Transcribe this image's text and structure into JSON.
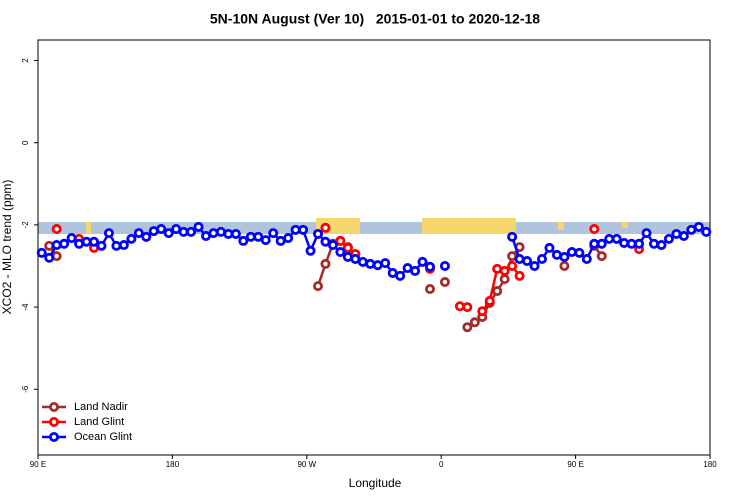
{
  "chart_data": {
    "type": "line",
    "title": "5N-10N August (Ver 10)   2015-01-01 to 2020-12-18",
    "x_label": "Longitude",
    "y_label": "XCO2 - MLO trend (ppm)",
    "xlim": [
      90,
      540
    ],
    "ylim": [
      -7.6,
      2.5
    ],
    "xticks": [
      {
        "value": 90,
        "label": "90 E"
      },
      180,
      {
        "value": 270,
        "label": "90 W"
      },
      {
        "value": 360,
        "label": "0"
      },
      {
        "value": 450,
        "label": "90 E"
      },
      {
        "value": 540,
        "label": "180"
      }
    ],
    "yticks": [
      -6,
      -4,
      -2,
      0,
      2
    ],
    "legend": "bottom-left",
    "x": [
      92.5,
      97.5,
      102.5,
      107.5,
      112.5,
      117.5,
      122.5,
      127.5,
      132.5,
      137.5,
      142.5,
      147.5,
      152.5,
      157.5,
      162.5,
      167.5,
      172.5,
      177.5,
      182.5,
      187.5,
      192.5,
      197.5,
      202.5,
      207.5,
      212.5,
      217.5,
      222.5,
      227.5,
      232.5,
      237.5,
      242.5,
      247.5,
      252.5,
      257.5,
      262.5,
      267.5,
      272.5,
      277.5,
      282.5,
      287.5,
      292.5,
      297.5,
      302.5,
      307.5,
      312.5,
      317.5,
      322.5,
      327.5,
      332.5,
      337.5,
      342.5,
      347.5,
      352.5,
      357.5,
      362.5,
      367.5,
      372.5,
      377.5,
      382.5,
      387.5,
      392.5,
      397.5,
      402.5,
      407.5,
      412.5,
      417.5,
      422.5,
      427.5,
      432.5,
      437.5,
      442.5,
      447.5,
      452.5,
      457.5,
      462.5,
      467.5,
      472.5,
      477.5,
      482.5,
      487.5,
      492.5,
      497.5,
      502.5,
      507.5,
      512.5,
      517.5,
      522.5,
      527.5,
      532.5,
      537.5
    ],
    "series": [
      {
        "name": "Land Nadir",
        "color": "#a52a2a",
        "values": [
          null,
          -2.51,
          -2.76,
          null,
          null,
          null,
          null,
          null,
          null,
          null,
          null,
          null,
          null,
          null,
          null,
          null,
          null,
          null,
          null,
          null,
          null,
          null,
          null,
          null,
          null,
          null,
          null,
          null,
          null,
          null,
          null,
          null,
          null,
          null,
          null,
          null,
          null,
          -3.49,
          -2.95,
          -2.46,
          -2.39,
          -2.54,
          -2.71,
          null,
          null,
          null,
          null,
          null,
          null,
          null,
          null,
          null,
          -3.56,
          null,
          -3.39,
          null,
          null,
          -4.49,
          -4.37,
          -4.24,
          -3.9,
          -3.61,
          -3.32,
          -2.76,
          -2.54,
          null,
          null,
          null,
          null,
          null,
          -3.0,
          null,
          null,
          null,
          -2.51,
          -2.76,
          null,
          null,
          null,
          null,
          null,
          null,
          null,
          null,
          null,
          null,
          null,
          null,
          null,
          null
        ]
      },
      {
        "name": "Land Glint",
        "color": "#ff0000",
        "values": [
          null,
          null,
          -2.1,
          null,
          null,
          -2.34,
          null,
          -2.56,
          null,
          null,
          null,
          null,
          null,
          null,
          null,
          null,
          null,
          null,
          null,
          null,
          null,
          null,
          null,
          null,
          null,
          null,
          null,
          null,
          null,
          null,
          null,
          null,
          null,
          null,
          null,
          null,
          null,
          null,
          -2.07,
          null,
          -2.39,
          -2.56,
          -2.71,
          null,
          null,
          null,
          null,
          null,
          null,
          null,
          null,
          null,
          -3.07,
          null,
          null,
          null,
          -3.98,
          -4.0,
          null,
          -4.1,
          -3.85,
          -3.07,
          -3.12,
          -3.0,
          -3.24,
          null,
          null,
          null,
          null,
          null,
          null,
          null,
          null,
          null,
          -2.1,
          null,
          null,
          null,
          null,
          null,
          -2.59,
          null,
          null,
          null,
          null,
          null,
          null,
          null,
          null,
          null
        ]
      },
      {
        "name": "Ocean Glint",
        "color": "#0000ff",
        "values": [
          -2.68,
          -2.8,
          -2.49,
          -2.46,
          -2.32,
          -2.46,
          -2.41,
          -2.41,
          -2.51,
          -2.2,
          -2.51,
          -2.49,
          -2.34,
          -2.2,
          -2.29,
          -2.15,
          -2.1,
          -2.2,
          -2.1,
          -2.17,
          -2.17,
          -2.05,
          -2.27,
          -2.2,
          -2.17,
          -2.22,
          -2.22,
          -2.39,
          -2.29,
          -2.29,
          -2.37,
          -2.2,
          -2.39,
          -2.32,
          -2.12,
          -2.12,
          -2.63,
          -2.22,
          -2.41,
          -2.49,
          -2.66,
          -2.78,
          -2.83,
          -2.9,
          -2.95,
          -2.98,
          -2.93,
          -3.17,
          -3.24,
          -3.05,
          -3.12,
          -2.9,
          -3.02,
          null,
          -3.0,
          null,
          null,
          null,
          null,
          null,
          null,
          null,
          null,
          -2.29,
          -2.83,
          -2.88,
          -3.0,
          -2.83,
          -2.56,
          -2.73,
          -2.78,
          -2.66,
          -2.68,
          -2.83,
          -2.46,
          -2.46,
          -2.34,
          -2.34,
          -2.44,
          -2.46,
          -2.46,
          -2.2,
          -2.46,
          -2.49,
          -2.34,
          -2.22,
          -2.27,
          -2.12,
          -2.05,
          -2.17
        ]
      }
    ]
  }
}
